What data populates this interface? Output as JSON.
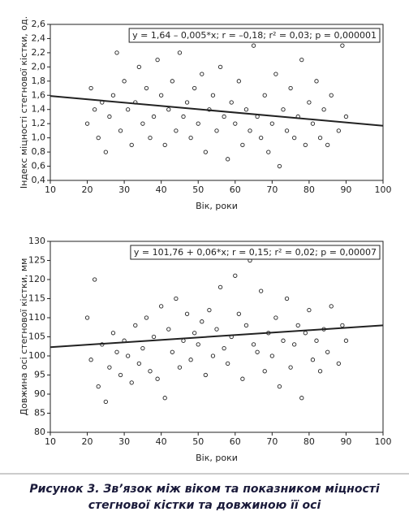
{
  "chart_data": [
    {
      "type": "scatter",
      "ylabel": "Індекс міцності стегнової кістки, од.",
      "xlabel": "Вік, роки",
      "annotation": "y = 1,64 – 0,005*x; r = –0,18; r² = 0,03; p = 0,000001",
      "xlim": [
        10,
        100
      ],
      "xticks": [
        10,
        20,
        30,
        40,
        50,
        60,
        70,
        80,
        90,
        100
      ],
      "ylim": [
        0.4,
        2.6
      ],
      "yticks": [
        {
          "value": 0.4,
          "label": "0,4"
        },
        {
          "value": 0.6,
          "label": "0,6"
        },
        {
          "value": 0.8,
          "label": "0,8"
        },
        {
          "value": 1.0,
          "label": "1,0"
        },
        {
          "value": 1.2,
          "label": "1,2"
        },
        {
          "value": 1.4,
          "label": "1,4"
        },
        {
          "value": 1.6,
          "label": "1,6"
        },
        {
          "value": 1.8,
          "label": "1,8"
        },
        {
          "value": 2.0,
          "label": "2,0"
        },
        {
          "value": 2.2,
          "label": "2,2"
        },
        {
          "value": 2.4,
          "label": "2,4"
        },
        {
          "value": 2.6,
          "label": "2,6"
        }
      ],
      "x": [
        20,
        21,
        22,
        23,
        24,
        25,
        26,
        27,
        28,
        29,
        30,
        31,
        32,
        33,
        34,
        35,
        36,
        37,
        38,
        39,
        40,
        41,
        42,
        43,
        44,
        45,
        46,
        47,
        48,
        49,
        50,
        51,
        52,
        53,
        54,
        55,
        56,
        57,
        58,
        59,
        60,
        61,
        62,
        63,
        64,
        65,
        66,
        67,
        68,
        69,
        70,
        71,
        72,
        73,
        74,
        75,
        76,
        77,
        78,
        79,
        80,
        81,
        82,
        83,
        84,
        85,
        86,
        88,
        89,
        90
      ],
      "y": [
        1.2,
        1.7,
        1.4,
        1.0,
        1.5,
        0.8,
        1.3,
        1.6,
        2.2,
        1.1,
        1.8,
        1.4,
        0.9,
        1.5,
        2.0,
        1.2,
        1.7,
        1.0,
        1.3,
        2.1,
        1.6,
        0.9,
        1.4,
        1.8,
        1.1,
        2.2,
        1.3,
        1.5,
        1.0,
        1.7,
        1.2,
        1.9,
        0.8,
        1.4,
        1.6,
        1.1,
        2.0,
        1.3,
        0.7,
        1.5,
        1.2,
        1.8,
        0.9,
        1.4,
        1.1,
        2.3,
        1.3,
        1.0,
        1.6,
        0.8,
        1.2,
        1.9,
        0.6,
        1.4,
        1.1,
        1.7,
        1.0,
        1.3,
        2.1,
        0.9,
        1.5,
        1.2,
        1.8,
        1.0,
        1.4,
        0.9,
        1.6,
        1.1,
        2.3,
        1.3
      ],
      "trend": {
        "x": [
          10,
          100
        ],
        "y": [
          1.59,
          1.17
        ]
      }
    },
    {
      "type": "scatter",
      "ylabel": "Довжина осі стегнової кістки, мм",
      "xlabel": "Вік, роки",
      "annotation": "y = 101,76 + 0,06*x; r = 0,15; r² = 0,02; p = 0,00007",
      "xlim": [
        10,
        100
      ],
      "xticks": [
        10,
        20,
        30,
        40,
        50,
        60,
        70,
        80,
        90,
        100
      ],
      "ylim": [
        80,
        130
      ],
      "yticks": [
        80,
        85,
        90,
        95,
        100,
        105,
        110,
        115,
        120,
        125,
        130
      ],
      "x": [
        20,
        21,
        22,
        23,
        24,
        25,
        26,
        27,
        28,
        29,
        30,
        31,
        32,
        33,
        34,
        35,
        36,
        37,
        38,
        39,
        40,
        41,
        42,
        43,
        44,
        45,
        46,
        47,
        48,
        49,
        50,
        51,
        52,
        53,
        54,
        55,
        56,
        57,
        58,
        59,
        60,
        61,
        62,
        63,
        64,
        65,
        66,
        67,
        68,
        69,
        70,
        71,
        72,
        73,
        74,
        75,
        76,
        77,
        78,
        79,
        80,
        81,
        82,
        83,
        84,
        85,
        86,
        88,
        89,
        90
      ],
      "y": [
        110,
        99,
        120,
        92,
        103,
        88,
        97,
        106,
        101,
        95,
        104,
        100,
        93,
        108,
        98,
        102,
        110,
        96,
        105,
        94,
        113,
        89,
        107,
        101,
        115,
        97,
        104,
        111,
        99,
        106,
        103,
        109,
        95,
        112,
        100,
        107,
        118,
        102,
        98,
        105,
        121,
        111,
        94,
        108,
        125,
        103,
        101,
        117,
        96,
        106,
        100,
        110,
        92,
        104,
        115,
        97,
        103,
        108,
        89,
        106,
        112,
        99,
        104,
        96,
        107,
        101,
        113,
        98,
        108,
        104
      ],
      "trend": {
        "x": [
          10,
          100
        ],
        "y": [
          102.3,
          108
        ]
      }
    }
  ],
  "caption": {
    "lines": [
      "Рисунок 3. Зв’язок між віком та показником міцності",
      "стегнової кістки та довжиною її осі"
    ]
  }
}
